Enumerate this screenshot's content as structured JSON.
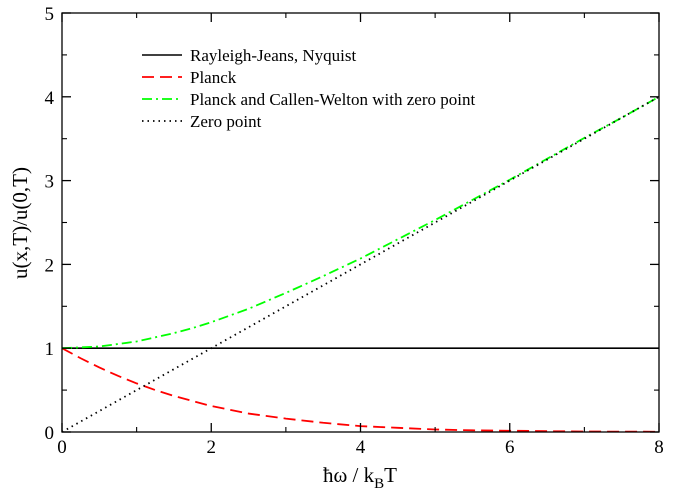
{
  "chart_data": {
    "type": "line",
    "title": "",
    "xlabel_main": "ħω / k",
    "xlabel_sub": "B",
    "xlabel_tail": "T",
    "ylabel": "u(x,T)/u(0,T)",
    "xlim": [
      0,
      8
    ],
    "ylim": [
      0,
      5
    ],
    "xticks": [
      0,
      2,
      4,
      6,
      8
    ],
    "yticks": [
      0,
      1,
      2,
      3,
      4,
      5
    ],
    "grid": false,
    "legend_position": "top-left",
    "series": [
      {
        "name": "Rayleigh-Jeans, Nyquist",
        "color": "#000000",
        "style": "solid",
        "x": [
          0,
          1,
          2,
          3,
          4,
          5,
          6,
          7,
          8
        ],
        "y": [
          1,
          1,
          1,
          1,
          1,
          1,
          1,
          1,
          1
        ]
      },
      {
        "name": "Planck",
        "color": "#ff0000",
        "style": "dashed",
        "x": [
          0,
          0.25,
          0.5,
          0.75,
          1,
          1.25,
          1.5,
          1.75,
          2,
          2.5,
          3,
          3.5,
          4,
          4.5,
          5,
          5.5,
          6,
          6.5,
          7,
          7.5,
          8
        ],
        "y": [
          1,
          0.88,
          0.77,
          0.67,
          0.58,
          0.5,
          0.43,
          0.37,
          0.31,
          0.22,
          0.16,
          0.11,
          0.07,
          0.05,
          0.03,
          0.02,
          0.015,
          0.01,
          0.006,
          0.004,
          0.003
        ]
      },
      {
        "name": "Planck and Callen-Welton with zero point",
        "color": "#00ff00",
        "style": "dashdot",
        "x": [
          0,
          0.25,
          0.5,
          0.75,
          1,
          1.25,
          1.5,
          1.75,
          2,
          2.5,
          3,
          3.5,
          4,
          4.5,
          5,
          5.5,
          6,
          6.5,
          7,
          7.5,
          8
        ],
        "y": [
          1,
          1.01,
          1.02,
          1.05,
          1.08,
          1.13,
          1.18,
          1.24,
          1.31,
          1.47,
          1.66,
          1.86,
          2.07,
          2.3,
          2.53,
          2.77,
          3.01,
          3.26,
          3.51,
          3.75,
          4.0
        ]
      },
      {
        "name": "Zero point",
        "color": "#000000",
        "style": "dotted",
        "x": [
          0,
          8
        ],
        "y": [
          0,
          4
        ]
      }
    ]
  }
}
